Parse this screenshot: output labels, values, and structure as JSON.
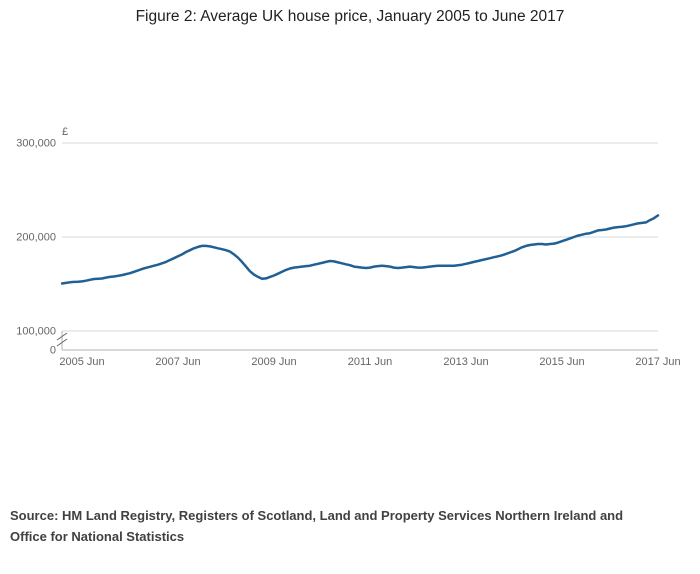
{
  "title": "Figure 2: Average UK house price, January 2005 to June 2017",
  "source": {
    "line1": "Source: HM Land Registry, Registers of Scotland, Land and Property Services Northern Ireland and",
    "line2": "Office for National Statistics"
  },
  "colors": {
    "line": "#206095",
    "grid": "#d9d9d9",
    "axis": "#b3b3b3",
    "tick_text": "#666666",
    "title_text": "#222222",
    "source_text": "#414042"
  },
  "chart_data": {
    "type": "line",
    "title": "Figure 2: Average UK house price, January 2005 to June 2017",
    "xlabel": "",
    "ylabel": "£",
    "unit_label": "£",
    "grid": true,
    "legend": false,
    "axis_break_between_0_and_100000": true,
    "ylim_display": [
      100000,
      300000
    ],
    "y_ticks": [
      {
        "value": 300000,
        "label": "300,000"
      },
      {
        "value": 200000,
        "label": "200,000"
      },
      {
        "value": 100000,
        "label": "100,000"
      },
      {
        "value": 0,
        "label": "0"
      }
    ],
    "x_ticks": [
      {
        "label": "2005 Jun",
        "month_index": 5
      },
      {
        "label": "2007 Jun",
        "month_index": 29
      },
      {
        "label": "2009 Jun",
        "month_index": 53
      },
      {
        "label": "2011 Jun",
        "month_index": 77
      },
      {
        "label": "2013 Jun",
        "month_index": 101
      },
      {
        "label": "2015 Jun",
        "month_index": 125
      },
      {
        "label": "2017 Jun",
        "month_index": 149
      }
    ],
    "x_start": "2005-01",
    "x_end": "2017-06",
    "frequency": "monthly",
    "series": [
      {
        "name": "Average UK house price (£)",
        "color": "#206095",
        "values": [
          150500,
          151200,
          151800,
          152200,
          152500,
          152800,
          153500,
          154500,
          155300,
          155600,
          155900,
          156800,
          157500,
          158000,
          158700,
          159500,
          160500,
          161500,
          163000,
          164500,
          166000,
          167200,
          168300,
          169500,
          170500,
          172000,
          173500,
          175500,
          177500,
          179500,
          181500,
          184000,
          186000,
          188000,
          189500,
          190500,
          190500,
          190000,
          189000,
          188000,
          187000,
          186000,
          184500,
          181500,
          178000,
          173500,
          168500,
          163500,
          160000,
          157500,
          155500,
          156000,
          157500,
          159000,
          161000,
          163000,
          165000,
          166500,
          167500,
          168000,
          168500,
          169000,
          169500,
          170500,
          171500,
          172500,
          173500,
          174500,
          174000,
          173000,
          172000,
          171000,
          170000,
          168500,
          168000,
          167500,
          167000,
          167500,
          168500,
          169000,
          169500,
          169000,
          168500,
          167500,
          167000,
          167500,
          168000,
          168500,
          168000,
          167500,
          167500,
          168000,
          168500,
          169000,
          169500,
          169500,
          169500,
          169500,
          169500,
          170000,
          170500,
          171500,
          172500,
          173500,
          174500,
          175500,
          176500,
          177500,
          178500,
          179500,
          180500,
          182000,
          183500,
          185000,
          187000,
          189000,
          190500,
          191500,
          192000,
          192500,
          192500,
          192000,
          192500,
          193000,
          194000,
          195500,
          197000,
          198500,
          200000,
          201500,
          202500,
          203500,
          204000,
          205500,
          207000,
          207500,
          208000,
          209000,
          210000,
          210500,
          211000,
          211500,
          212500,
          213500,
          214500,
          215000,
          215500,
          218000,
          220000,
          223000
        ]
      }
    ]
  }
}
